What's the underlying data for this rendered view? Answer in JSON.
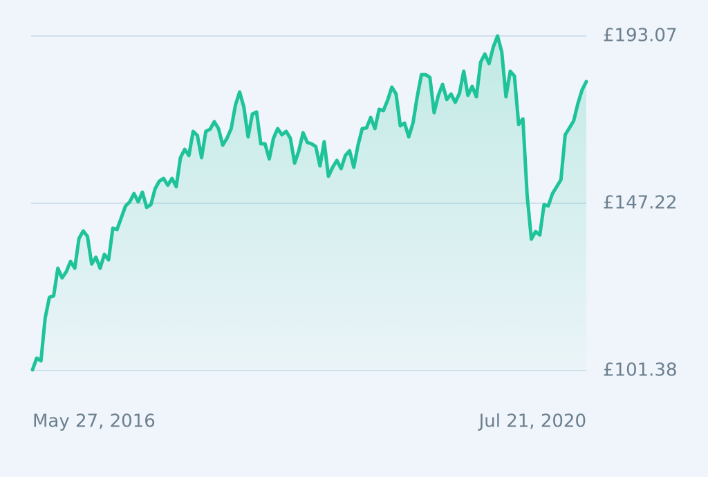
{
  "chart_data": {
    "type": "line",
    "categories": [
      "May 27, 2016",
      null,
      null,
      null,
      null,
      null,
      null,
      null,
      null,
      null,
      null,
      null,
      null,
      null,
      null,
      null,
      null,
      null,
      null,
      null,
      null,
      null,
      null,
      null,
      null,
      null,
      null,
      null,
      null,
      null,
      null,
      null,
      null,
      null,
      null,
      null,
      null,
      null,
      null,
      null,
      null,
      null,
      null,
      null,
      null,
      null,
      null,
      null,
      null,
      null,
      null,
      null,
      null,
      null,
      null,
      null,
      null,
      null,
      null,
      null,
      null,
      null,
      null,
      null,
      null,
      null,
      null,
      null,
      null,
      null,
      null,
      null,
      null,
      null,
      null,
      null,
      null,
      null,
      null,
      null,
      null,
      null,
      null,
      null,
      null,
      null,
      null,
      null,
      null,
      null,
      null,
      null,
      null,
      null,
      null,
      null,
      null,
      null,
      null,
      null,
      null,
      null,
      null,
      null,
      null,
      null,
      null,
      null,
      null,
      null,
      null,
      null,
      null,
      null,
      null,
      null,
      null,
      null,
      null,
      null,
      null,
      null,
      null,
      null,
      null,
      null,
      null,
      null,
      null,
      null,
      null,
      "Jul 21, 2020"
    ],
    "values": [
      101.57,
      104.79,
      104.03,
      115.78,
      121.46,
      121.84,
      129.42,
      126.76,
      128.47,
      131.31,
      129.42,
      137.56,
      139.65,
      138.13,
      130.55,
      132.45,
      129.42,
      133.21,
      131.69,
      140.4,
      140.03,
      143.25,
      146.47,
      147.6,
      149.88,
      147.6,
      150.26,
      146.09,
      146.85,
      151.2,
      153.29,
      154.04,
      152.15,
      154.04,
      151.77,
      159.73,
      162.0,
      160.3,
      166.93,
      165.79,
      159.73,
      166.93,
      167.49,
      169.58,
      167.68,
      163.14,
      165.03,
      167.68,
      174.12,
      177.72,
      173.56,
      165.41,
      171.66,
      172.23,
      163.52,
      163.52,
      159.35,
      165.03,
      167.68,
      165.98,
      166.93,
      165.03,
      158.21,
      161.62,
      166.55,
      163.9,
      163.52,
      162.76,
      157.45,
      164.08,
      154.61,
      157.08,
      158.97,
      156.7,
      160.3,
      161.62,
      157.08,
      163.14,
      167.68,
      167.87,
      170.72,
      167.68,
      172.99,
      172.61,
      175.45,
      179.05,
      177.16,
      168.44,
      169.2,
      165.41,
      169.2,
      176.4,
      182.46,
      182.46,
      181.7,
      172.04,
      176.78,
      179.81,
      175.64,
      177.16,
      174.88,
      177.35,
      183.41,
      176.78,
      179.24,
      176.4,
      185.87,
      188.14,
      185.49,
      190.04,
      193.07,
      188.71,
      176.4,
      183.41,
      182.08,
      168.82,
      170.34,
      149.5,
      137.37,
      139.46,
      138.51,
      146.85,
      146.47,
      149.88,
      151.77,
      153.67,
      165.98,
      167.87,
      169.77,
      174.5,
      178.29,
      180.57
    ],
    "color": "#1fc39a",
    "ylim": [
      101.38,
      193.07
    ],
    "yticks": [
      {
        "value": 101.38,
        "label": "£101.38"
      },
      {
        "value": 147.22,
        "label": "£147.22"
      },
      {
        "value": 193.07,
        "label": "£193.07"
      }
    ],
    "grid": true
  }
}
